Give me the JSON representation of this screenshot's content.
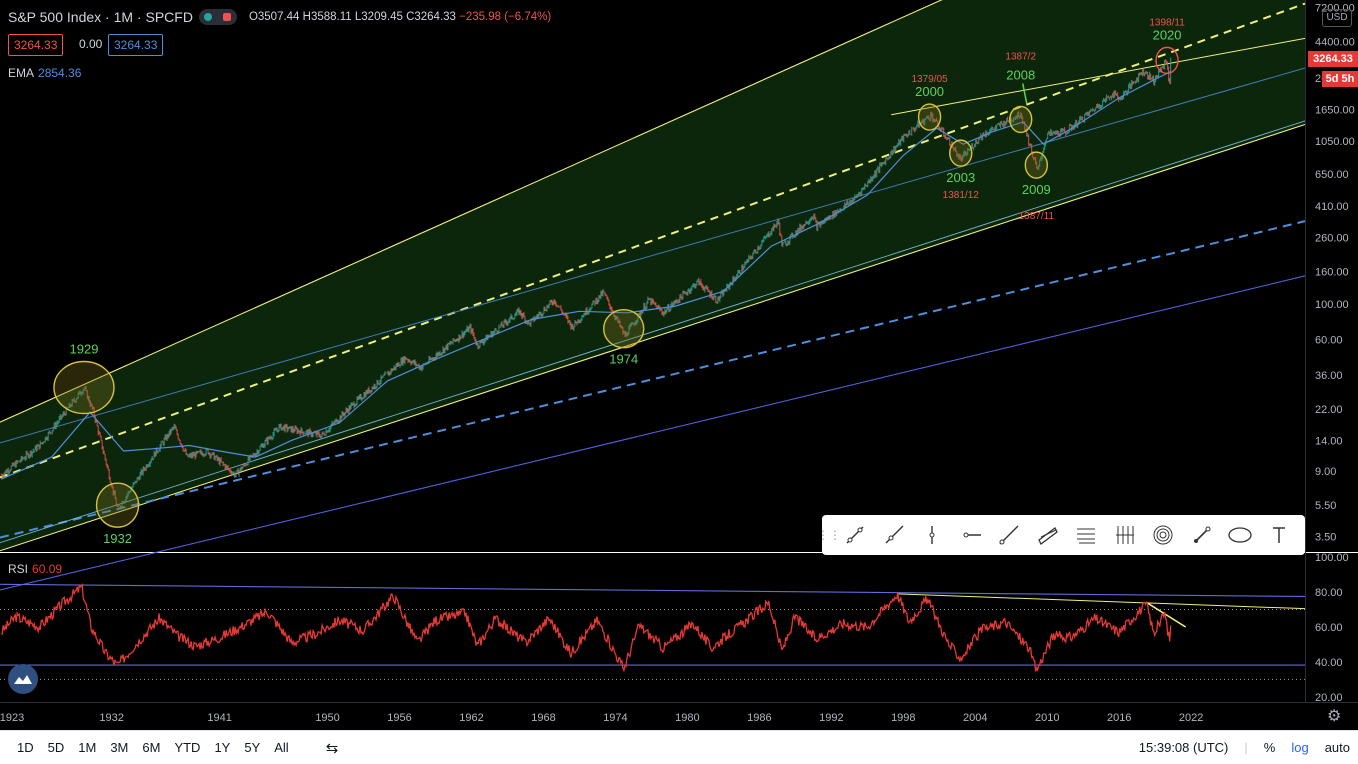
{
  "header": {
    "symbol": "S&P 500 Index · 1M · SPCFD",
    "open": "O3507.44",
    "high": "H3588.11",
    "low": "L3209.45",
    "close": "C3264.33",
    "change": "−235.98 (−6.74%)"
  },
  "price_boxes": {
    "sell": "3264.33",
    "spread": "0.00",
    "buy": "3264.33"
  },
  "indicators": {
    "ema_label": "EMA",
    "ema_value": "2854.36",
    "rsi_label": "RSI",
    "rsi_value": "60.09"
  },
  "currency": "USD",
  "last_price": "3264.33",
  "countdown": "5d 5h",
  "colors": {
    "up": "#26a69a",
    "down": "#ef5350",
    "ema": "#4f8edc",
    "rsi": "#e53935",
    "channel": "#f0f07a",
    "annotation": "#5bd35b",
    "iran_date": "#ef5350"
  },
  "chart_data": [
    {
      "type": "candlestick",
      "title": "S&P 500 Index",
      "scale": "log",
      "x_ticks": [
        "1923",
        "1932",
        "1941",
        "1950",
        "1956",
        "1962",
        "1968",
        "1974",
        "1980",
        "1986",
        "1992",
        "1998",
        "2004",
        "2010",
        "2016",
        "2022"
      ],
      "y_ticks": [
        "7200.00",
        "4400.00",
        "2600.00",
        "1650.00",
        "1050.00",
        "650.00",
        "410.00",
        "260.00",
        "160.00",
        "100.00",
        "60.00",
        "36.00",
        "22.00",
        "14.00",
        "9.00",
        "5.50",
        "3.50"
      ],
      "ylim": [
        2.8,
        8000
      ],
      "xlim": [
        1922.7,
        2031.5
      ],
      "close_series": [
        [
          1922.8,
          8.5
        ],
        [
          1926,
          13
        ],
        [
          1929.7,
          30
        ],
        [
          1930.5,
          21
        ],
        [
          1932.5,
          5.2
        ],
        [
          1935,
          10
        ],
        [
          1937.2,
          17
        ],
        [
          1938.3,
          11
        ],
        [
          1940,
          12
        ],
        [
          1942.3,
          8.5
        ],
        [
          1946,
          17
        ],
        [
          1949.5,
          15
        ],
        [
          1952,
          23
        ],
        [
          1956.5,
          46
        ],
        [
          1957.8,
          40
        ],
        [
          1961.9,
          71
        ],
        [
          1962.5,
          55
        ],
        [
          1966,
          90
        ],
        [
          1966.8,
          75
        ],
        [
          1968.9,
          106
        ],
        [
          1970.4,
          72
        ],
        [
          1973,
          118
        ],
        [
          1974.8,
          63
        ],
        [
          1976.8,
          106
        ],
        [
          1978,
          88
        ],
        [
          1980.9,
          138
        ],
        [
          1982.5,
          105
        ],
        [
          1987.6,
          330
        ],
        [
          1987.9,
          230
        ],
        [
          1990.5,
          360
        ],
        [
          1990.8,
          305
        ],
        [
          1994,
          460
        ],
        [
          1995,
          570
        ],
        [
          1998,
          1100
        ],
        [
          2000.3,
          1525
        ],
        [
          2001.8,
          1050
        ],
        [
          2002.8,
          800
        ],
        [
          2004.5,
          1130
        ],
        [
          2007.8,
          1560
        ],
        [
          2009.2,
          680
        ],
        [
          2010,
          1150
        ],
        [
          2011.6,
          1200
        ],
        [
          2015.5,
          2080
        ],
        [
          2016.1,
          1930
        ],
        [
          2018,
          2900
        ],
        [
          2018.9,
          2500
        ],
        [
          2020,
          3386
        ],
        [
          2020.2,
          2240
        ],
        [
          2020.3,
          3264
        ]
      ],
      "ema_series": [
        [
          1922.8,
          8
        ],
        [
          1927,
          11
        ],
        [
          1930.2,
          21
        ],
        [
          1933,
          12
        ],
        [
          1936,
          12.5
        ],
        [
          1938.5,
          13
        ],
        [
          1941,
          12
        ],
        [
          1944,
          11
        ],
        [
          1947,
          14
        ],
        [
          1951,
          18
        ],
        [
          1955,
          33
        ],
        [
          1959,
          45
        ],
        [
          1963,
          60
        ],
        [
          1967,
          80
        ],
        [
          1971,
          90
        ],
        [
          1975,
          88
        ],
        [
          1979,
          97
        ],
        [
          1983,
          120
        ],
        [
          1987,
          230
        ],
        [
          1991,
          320
        ],
        [
          1995,
          480
        ],
        [
          1998,
          850
        ],
        [
          2000.8,
          1260
        ],
        [
          2003,
          1000
        ],
        [
          2005.5,
          1200
        ],
        [
          2008,
          1380
        ],
        [
          2009.7,
          1000
        ],
        [
          2012,
          1250
        ],
        [
          2016,
          1950
        ],
        [
          2019,
          2550
        ],
        [
          2020.3,
          2854
        ]
      ],
      "annotations": [
        {
          "label": "1929",
          "year": 1929.7,
          "price": 30,
          "label_pos": "above"
        },
        {
          "label": "1932",
          "year": 1932.5,
          "price": 5.5,
          "label_pos": "below"
        },
        {
          "label": "1974",
          "year": 1974.7,
          "price": 70,
          "label_pos": "below"
        },
        {
          "label": "2000",
          "year": 2000.2,
          "price": 1480,
          "label_pos": "above",
          "iran": "1379/05"
        },
        {
          "label": "2003",
          "year": 2002.8,
          "price": 880,
          "label_pos": "below",
          "iran": "1381/12"
        },
        {
          "label": "2008",
          "year": 2007.8,
          "price": 1430,
          "label_pos": "arrow",
          "iran": "1387/2"
        },
        {
          "label": "2009",
          "year": 2009.1,
          "price": 740,
          "label_pos": "below",
          "iran": "1387/11"
        },
        {
          "label": "2020",
          "year": 2020.0,
          "price": 3350,
          "label_pos": "above",
          "iran": "1398/11"
        }
      ]
    },
    {
      "type": "line",
      "title": "RSI",
      "ylim": [
        17,
        103
      ],
      "y_ticks": [
        "100.00",
        "80.00",
        "60.00",
        "40.00",
        "20.00"
      ],
      "levels": [
        70,
        30
      ],
      "value": 60.09,
      "series": [
        [
          1922.8,
          57
        ],
        [
          1924,
          66
        ],
        [
          1926,
          60
        ],
        [
          1928,
          74
        ],
        [
          1929.5,
          83
        ],
        [
          1930.3,
          60
        ],
        [
          1931.5,
          45
        ],
        [
          1932.5,
          38
        ],
        [
          1934,
          50
        ],
        [
          1936,
          65
        ],
        [
          1937.5,
          55
        ],
        [
          1939,
          49
        ],
        [
          1941,
          54
        ],
        [
          1943,
          61
        ],
        [
          1945,
          69
        ],
        [
          1947,
          51
        ],
        [
          1949,
          56
        ],
        [
          1951,
          64
        ],
        [
          1953,
          58
        ],
        [
          1955.5,
          78
        ],
        [
          1957.5,
          51
        ],
        [
          1959,
          64
        ],
        [
          1961.5,
          68
        ],
        [
          1962.5,
          49
        ],
        [
          1964,
          65
        ],
        [
          1966.5,
          51
        ],
        [
          1968.5,
          65
        ],
        [
          1970.3,
          45
        ],
        [
          1972.5,
          64
        ],
        [
          1974.7,
          36
        ],
        [
          1976,
          61
        ],
        [
          1978,
          48
        ],
        [
          1980.5,
          62
        ],
        [
          1982,
          48
        ],
        [
          1985,
          64
        ],
        [
          1986.8,
          74
        ],
        [
          1987.9,
          46
        ],
        [
          1989,
          66
        ],
        [
          1990.7,
          53
        ],
        [
          1993,
          62
        ],
        [
          1995,
          60
        ],
        [
          1997.5,
          79
        ],
        [
          1998.5,
          63
        ],
        [
          2000,
          76
        ],
        [
          2001.8,
          50
        ],
        [
          2002.8,
          42
        ],
        [
          2004.5,
          58
        ],
        [
          2006.5,
          63
        ],
        [
          2008.5,
          48
        ],
        [
          2009.1,
          35
        ],
        [
          2010.5,
          55
        ],
        [
          2012,
          54
        ],
        [
          2014,
          65
        ],
        [
          2016,
          57
        ],
        [
          2017.5,
          68
        ],
        [
          2018.3,
          73
        ],
        [
          2018.9,
          56
        ],
        [
          2019.8,
          68
        ],
        [
          2020.2,
          52
        ],
        [
          2020.3,
          60
        ]
      ]
    }
  ],
  "bottom_bar": {
    "ranges": [
      "1D",
      "5D",
      "1M",
      "3M",
      "6M",
      "YTD",
      "1Y",
      "5Y",
      "All"
    ],
    "time": "15:39:08 (UTC)",
    "pct": "%",
    "log": "log",
    "auto": "auto"
  }
}
